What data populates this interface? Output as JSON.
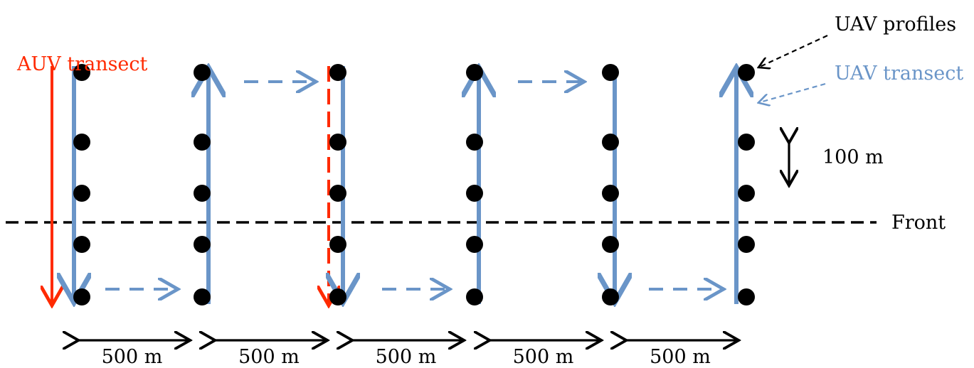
{
  "labels": {
    "auv_transect": "AUV transect",
    "uav_profiles": "UAV profiles",
    "uav_transect": "UAV transect",
    "vertical_spacing": "100 m",
    "front": "Front",
    "horizontal_spacing": [
      "500 m",
      "500 m",
      "500 m",
      "500 m",
      "500 m"
    ]
  },
  "colors": {
    "uav_blue": "#6a95c8",
    "auv_red": "#ff2a00",
    "black": "#000000"
  },
  "survey": {
    "transect_count": 6,
    "profiles_per_transect": 5,
    "uav_directions": [
      "down",
      "up",
      "down",
      "up",
      "down",
      "up"
    ]
  }
}
